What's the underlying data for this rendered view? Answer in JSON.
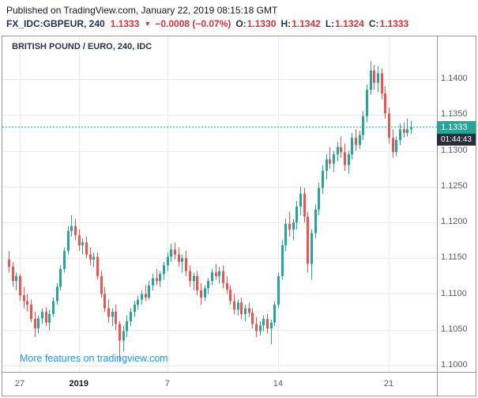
{
  "header": {
    "published_line": "Published on TradingView.com, January 22, 2019 08:15:18 GMT",
    "symbol": "FX_IDC:GBPEUR, 240",
    "last_price": "1.1333",
    "arrow": "▼",
    "change": "−0.0008 (−0.07%)",
    "o_label": "O:",
    "o_value": "1.1330",
    "h_label": "H:",
    "h_value": "1.1342",
    "l_label": "L:",
    "l_value": "1.1324",
    "c_label": "C:",
    "c_value": "1.1333"
  },
  "chart": {
    "legend": "BRITISH POUND / EURO, 240, IDC",
    "link_text": "More features on tradingview.com",
    "current_price_label": "1.1333",
    "countdown": "01:44:43",
    "colors": {
      "up": "#26a69a",
      "down": "#ef5350",
      "accent": "#26a69a",
      "countdown_bg": "#2a2e39",
      "header_red": "#d6323e",
      "header_navy": "#283250",
      "link_blue": "#2196f3",
      "axis_text": "#555b66",
      "grid": "#ebebeb"
    }
  },
  "chart_data": {
    "type": "candlestick",
    "title": "BRITISH POUND / EURO, 240, IDC",
    "symbol": "FX_IDC:GBPEUR",
    "interval": "240",
    "current_price": 1.1333,
    "ohlc_current": {
      "open": 1.133,
      "high": 1.1342,
      "low": 1.1324,
      "close": 1.1333
    },
    "change": -0.0008,
    "change_pct": -0.07,
    "ylim": [
      1.0995,
      1.146
    ],
    "grid": true,
    "price_ticks": [
      "1.1400",
      "1.1350",
      "1.1300",
      "1.1250",
      "1.1200",
      "1.1150",
      "1.1100",
      "1.1050",
      "1.1000"
    ],
    "x_ticks": [
      {
        "label": "27",
        "index": 3,
        "bold": false
      },
      {
        "label": "2019",
        "index": 19,
        "bold": true
      },
      {
        "label": "7",
        "index": 43,
        "bold": false
      },
      {
        "label": "14",
        "index": 73,
        "bold": false
      },
      {
        "label": "21",
        "index": 103,
        "bold": false
      }
    ],
    "candles": [
      [
        1.1148,
        1.116,
        1.113,
        1.1138
      ],
      [
        1.1138,
        1.1145,
        1.111,
        1.1118
      ],
      [
        1.1118,
        1.113,
        1.1105,
        1.1125
      ],
      [
        1.1125,
        1.1128,
        1.109,
        1.1098
      ],
      [
        1.1098,
        1.111,
        1.108,
        1.109
      ],
      [
        1.109,
        1.11,
        1.1075,
        1.1085
      ],
      [
        1.1085,
        1.1092,
        1.106,
        1.1065
      ],
      [
        1.1065,
        1.1075,
        1.104,
        1.1052
      ],
      [
        1.1052,
        1.107,
        1.1045,
        1.1066
      ],
      [
        1.1066,
        1.108,
        1.1058,
        1.1075
      ],
      [
        1.1075,
        1.1082,
        1.1055,
        1.106
      ],
      [
        1.106,
        1.1078,
        1.105,
        1.1072
      ],
      [
        1.1072,
        1.1095,
        1.1068,
        1.109
      ],
      [
        1.109,
        1.1115,
        1.1085,
        1.111
      ],
      [
        1.111,
        1.114,
        1.1105,
        1.1135
      ],
      [
        1.1135,
        1.1165,
        1.113,
        1.116
      ],
      [
        1.116,
        1.1195,
        1.1155,
        1.1188
      ],
      [
        1.1188,
        1.121,
        1.118,
        1.1195
      ],
      [
        1.1195,
        1.1205,
        1.1175,
        1.1182
      ],
      [
        1.1182,
        1.119,
        1.116,
        1.1168
      ],
      [
        1.1168,
        1.1178,
        1.1155,
        1.1172
      ],
      [
        1.1172,
        1.118,
        1.115,
        1.1155
      ],
      [
        1.1155,
        1.1165,
        1.114,
        1.1148
      ],
      [
        1.1148,
        1.1158,
        1.1138,
        1.1152
      ],
      [
        1.1152,
        1.1158,
        1.112,
        1.1125
      ],
      [
        1.1125,
        1.1132,
        1.1095,
        1.11
      ],
      [
        1.11,
        1.111,
        1.1075,
        1.108
      ],
      [
        1.108,
        1.1092,
        1.106,
        1.1068
      ],
      [
        1.1068,
        1.108,
        1.1055,
        1.1075
      ],
      [
        1.1075,
        1.1085,
        1.105,
        1.1058
      ],
      [
        1.1058,
        1.1062,
        1.1005,
        1.1035
      ],
      [
        1.1035,
        1.1055,
        1.102,
        1.1048
      ],
      [
        1.1048,
        1.107,
        1.104,
        1.1062
      ],
      [
        1.1062,
        1.108,
        1.1055,
        1.1075
      ],
      [
        1.1075,
        1.109,
        1.1068,
        1.1085
      ],
      [
        1.1085,
        1.1098,
        1.1078,
        1.1092
      ],
      [
        1.1092,
        1.1105,
        1.1085,
        1.11
      ],
      [
        1.11,
        1.1112,
        1.109,
        1.1095
      ],
      [
        1.1095,
        1.1118,
        1.1092,
        1.1112
      ],
      [
        1.1112,
        1.1128,
        1.1105,
        1.1122
      ],
      [
        1.1122,
        1.1135,
        1.1112,
        1.1118
      ],
      [
        1.1118,
        1.1132,
        1.111,
        1.1128
      ],
      [
        1.1128,
        1.1145,
        1.112,
        1.114
      ],
      [
        1.114,
        1.1158,
        1.1132,
        1.1152
      ],
      [
        1.1152,
        1.117,
        1.1145,
        1.1162
      ],
      [
        1.1162,
        1.1172,
        1.1148,
        1.1155
      ],
      [
        1.1155,
        1.1165,
        1.1138,
        1.1145
      ],
      [
        1.1145,
        1.1155,
        1.113,
        1.115
      ],
      [
        1.115,
        1.116,
        1.1125,
        1.1132
      ],
      [
        1.1132,
        1.114,
        1.111,
        1.1118
      ],
      [
        1.1118,
        1.113,
        1.1105,
        1.1125
      ],
      [
        1.1125,
        1.1132,
        1.1098,
        1.1105
      ],
      [
        1.1105,
        1.1115,
        1.1085,
        1.1095
      ],
      [
        1.1095,
        1.1112,
        1.109,
        1.1108
      ],
      [
        1.1108,
        1.1122,
        1.11,
        1.1118
      ],
      [
        1.1118,
        1.1135,
        1.1112,
        1.113
      ],
      [
        1.113,
        1.1142,
        1.112,
        1.1125
      ],
      [
        1.1125,
        1.1138,
        1.1115,
        1.1132
      ],
      [
        1.1132,
        1.114,
        1.1108,
        1.1115
      ],
      [
        1.1115,
        1.1125,
        1.11,
        1.1106
      ],
      [
        1.1106,
        1.1112,
        1.1085,
        1.109
      ],
      [
        1.109,
        1.11,
        1.1072,
        1.1078
      ],
      [
        1.1078,
        1.1092,
        1.107,
        1.1088
      ],
      [
        1.1088,
        1.1095,
        1.1065,
        1.1072
      ],
      [
        1.1072,
        1.1085,
        1.1062,
        1.108
      ],
      [
        1.108,
        1.1088,
        1.1068,
        1.1074
      ],
      [
        1.1074,
        1.108,
        1.1052,
        1.1058
      ],
      [
        1.1058,
        1.1068,
        1.104,
        1.1048
      ],
      [
        1.1048,
        1.1062,
        1.1042,
        1.1056
      ],
      [
        1.1056,
        1.107,
        1.1048,
        1.1065
      ],
      [
        1.1065,
        1.1072,
        1.1045,
        1.1052
      ],
      [
        1.1052,
        1.1064,
        1.103,
        1.106
      ],
      [
        1.106,
        1.109,
        1.1055,
        1.1085
      ],
      [
        1.1085,
        1.113,
        1.108,
        1.1125
      ],
      [
        1.1125,
        1.1175,
        1.112,
        1.1168
      ],
      [
        1.1168,
        1.1205,
        1.116,
        1.1198
      ],
      [
        1.1198,
        1.1215,
        1.118,
        1.119
      ],
      [
        1.119,
        1.1205,
        1.1175,
        1.12
      ],
      [
        1.12,
        1.123,
        1.119,
        1.1222
      ],
      [
        1.1222,
        1.125,
        1.121,
        1.124
      ],
      [
        1.124,
        1.1248,
        1.12,
        1.1208
      ],
      [
        1.1208,
        1.1215,
        1.113,
        1.1142
      ],
      [
        1.1142,
        1.119,
        1.112,
        1.1185
      ],
      [
        1.1185,
        1.1225,
        1.1178,
        1.1218
      ],
      [
        1.1218,
        1.1255,
        1.121,
        1.1248
      ],
      [
        1.1248,
        1.128,
        1.124,
        1.1272
      ],
      [
        1.1272,
        1.1295,
        1.126,
        1.1288
      ],
      [
        1.1288,
        1.1305,
        1.1275,
        1.1282
      ],
      [
        1.1282,
        1.13,
        1.127,
        1.1295
      ],
      [
        1.1295,
        1.1312,
        1.1285,
        1.1305
      ],
      [
        1.1305,
        1.132,
        1.129,
        1.1298
      ],
      [
        1.1298,
        1.131,
        1.1272,
        1.128
      ],
      [
        1.128,
        1.13,
        1.1268,
        1.1295
      ],
      [
        1.1295,
        1.1325,
        1.1288,
        1.1318
      ],
      [
        1.1318,
        1.133,
        1.13,
        1.1308
      ],
      [
        1.1308,
        1.1328,
        1.1302,
        1.1322
      ],
      [
        1.1322,
        1.1355,
        1.1315,
        1.1348
      ],
      [
        1.1348,
        1.1392,
        1.134,
        1.1385
      ],
      [
        1.1385,
        1.1425,
        1.1378,
        1.1412
      ],
      [
        1.1412,
        1.142,
        1.1385,
        1.1395
      ],
      [
        1.1395,
        1.1418,
        1.1382,
        1.1408
      ],
      [
        1.1408,
        1.1415,
        1.1372,
        1.138
      ],
      [
        1.138,
        1.139,
        1.1345,
        1.1352
      ],
      [
        1.1352,
        1.136,
        1.131,
        1.1318
      ],
      [
        1.1318,
        1.133,
        1.129,
        1.1298
      ],
      [
        1.1298,
        1.132,
        1.1292,
        1.1315
      ],
      [
        1.1315,
        1.1338,
        1.1308,
        1.133
      ],
      [
        1.133,
        1.134,
        1.1318,
        1.1325
      ],
      [
        1.1325,
        1.1345,
        1.132,
        1.133
      ],
      [
        1.133,
        1.1342,
        1.1324,
        1.1333
      ]
    ]
  }
}
